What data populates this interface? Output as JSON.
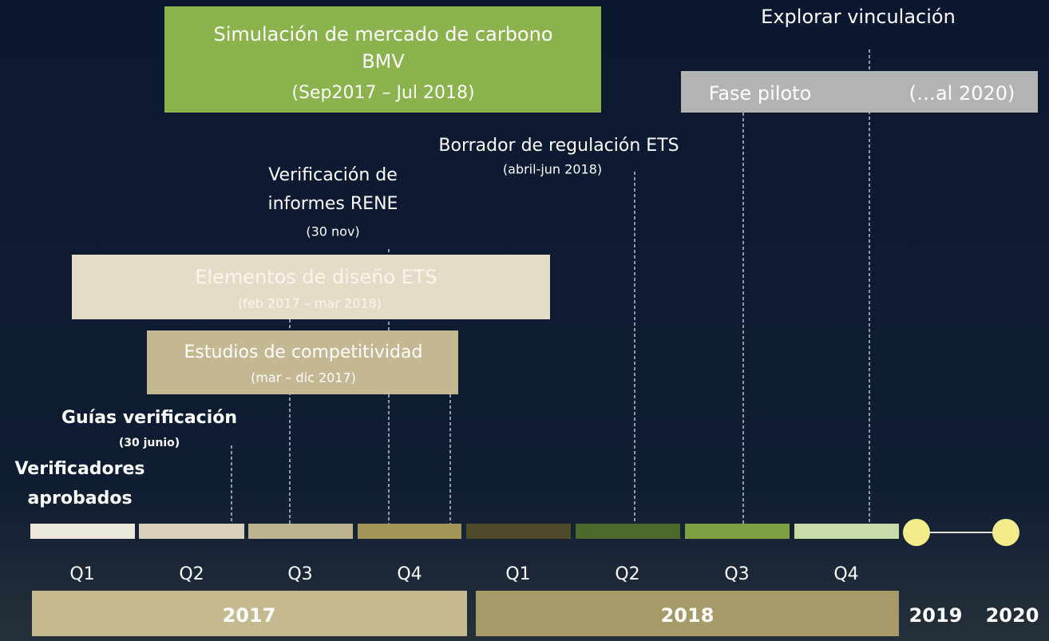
{
  "explore": "Explorar vinculación",
  "boxes": [
    {
      "lines": [
        "Simulación de mercado de carbono",
        "BMV",
        "(Sep2017 – Jul 2018)"
      ]
    },
    {
      "lines": [
        "Fase piloto",
        "(…al 2020)"
      ]
    },
    {
      "lines": [
        "Elementos de diseño ETS",
        "(feb 2017 – mar 2018)"
      ]
    },
    {
      "lines": [
        "Estudios de competitividad",
        "(mar – dic 2017)"
      ]
    }
  ],
  "milestones": [
    {
      "lines": [
        "Borrador de regulación ETS",
        "(abril-jun 2018)"
      ]
    },
    {
      "lines": [
        "Verificación de",
        "informes RENE",
        "(30 nov)"
      ]
    },
    {
      "lines": [
        "Guías verificación",
        "(30 junio)"
      ]
    },
    {
      "lines": [
        "Verificadores",
        "aprobados"
      ]
    }
  ],
  "quarters": [
    "Q1",
    "Q2",
    "Q3",
    "Q4",
    "Q1",
    "Q2",
    "Q3",
    "Q4"
  ],
  "years": [
    "2017",
    "2018",
    "2019",
    "2020"
  ]
}
